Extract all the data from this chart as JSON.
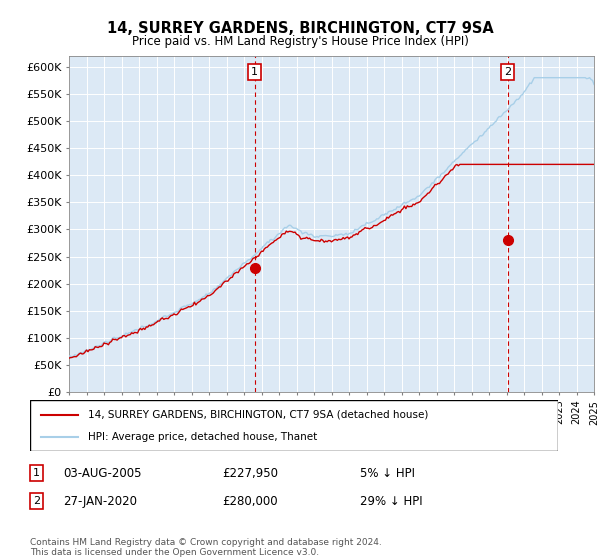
{
  "title": "14, SURREY GARDENS, BIRCHINGTON, CT7 9SA",
  "subtitle": "Price paid vs. HM Land Registry's House Price Index (HPI)",
  "ylabel_ticks": [
    "£0",
    "£50K",
    "£100K",
    "£150K",
    "£200K",
    "£250K",
    "£300K",
    "£350K",
    "£400K",
    "£450K",
    "£500K",
    "£550K",
    "£600K"
  ],
  "ytick_vals": [
    0,
    50000,
    100000,
    150000,
    200000,
    250000,
    300000,
    350000,
    400000,
    450000,
    500000,
    550000,
    600000
  ],
  "ylim": [
    0,
    620000
  ],
  "hpi_color": "#a8cfe8",
  "price_color": "#cc0000",
  "annotation_color": "#cc0000",
  "bg_color": "#dce9f5",
  "marker1_date_x": 2005.6,
  "marker1_price": 227950,
  "marker2_date_x": 2020.07,
  "marker2_price": 280000,
  "legend_label_price": "14, SURREY GARDENS, BIRCHINGTON, CT7 9SA (detached house)",
  "legend_label_hpi": "HPI: Average price, detached house, Thanet",
  "footnote3": "Contains HM Land Registry data © Crown copyright and database right 2024.\nThis data is licensed under the Open Government Licence v3.0.",
  "xmin": 1995,
  "xmax": 2025
}
